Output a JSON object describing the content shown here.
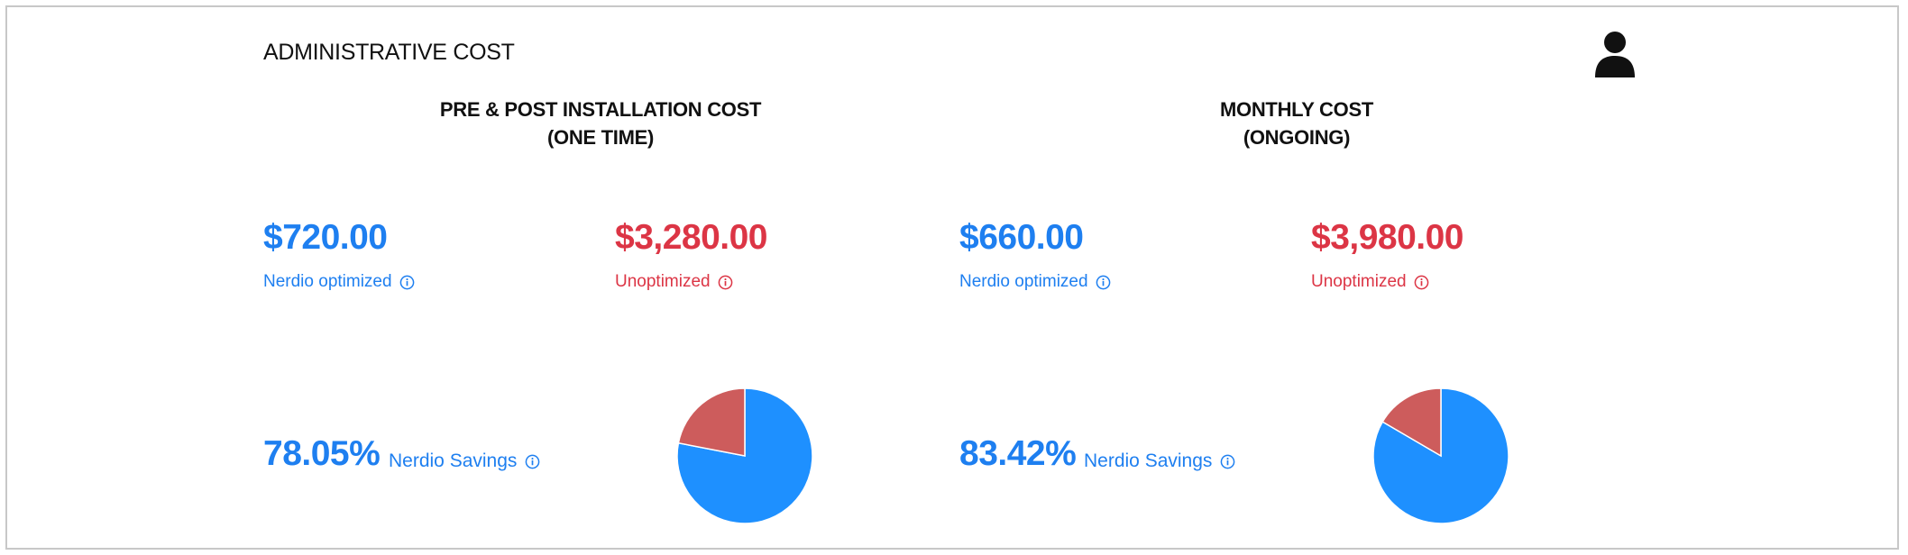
{
  "header": {
    "title": "ADMINISTRATIVE COST",
    "user_icon": "user-icon"
  },
  "colors": {
    "optimized": "#1e90ff",
    "unoptimized": "#cd5c5c",
    "text_blue": "#1e7ff0",
    "text_red": "#dc3545"
  },
  "columns": [
    {
      "header_line1": "PRE & POST INSTALLATION COST",
      "header_line2": "(ONE TIME)",
      "optimized_value": "$720.00",
      "optimized_label": "Nerdio optimized",
      "unoptimized_value": "$3,280.00",
      "unoptimized_label": "Unoptimized",
      "savings_percent": "78.05%",
      "savings_label": "Nerdio Savings"
    },
    {
      "header_line1": "MONTHLY COST",
      "header_line2": "(ONGOING)",
      "optimized_value": "$660.00",
      "optimized_label": "Nerdio optimized",
      "unoptimized_value": "$3,980.00",
      "unoptimized_label": "Unoptimized",
      "savings_percent": "83.42%",
      "savings_label": "Nerdio Savings"
    }
  ],
  "chart_data": [
    {
      "type": "pie",
      "slices": [
        {
          "value": 78.05,
          "color": "#1e90ff"
        },
        {
          "value": 21.95,
          "color": "#cd5c5c"
        }
      ]
    },
    {
      "type": "pie",
      "slices": [
        {
          "value": 83.42,
          "color": "#1e90ff"
        },
        {
          "value": 16.58,
          "color": "#cd5c5c"
        }
      ]
    }
  ]
}
